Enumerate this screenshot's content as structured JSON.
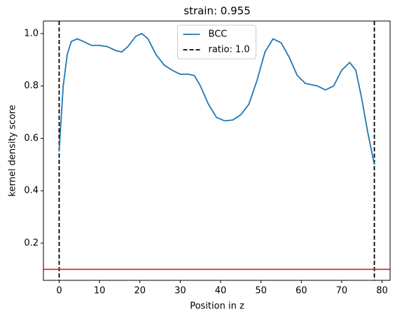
{
  "chart_data": {
    "type": "line",
    "title": "strain: 0.955",
    "x_label": "Position in z",
    "y_label": "kernel density score",
    "x": [
      0,
      1,
      2,
      3,
      4.5,
      6,
      8,
      10,
      12,
      14,
      15.5,
      17,
      19,
      20.5,
      22,
      24,
      26,
      28,
      30,
      32,
      33.5,
      35,
      37,
      39,
      41,
      43,
      45,
      47,
      49,
      51,
      53,
      55,
      57,
      59,
      61,
      64,
      66,
      68,
      70,
      72,
      73.5,
      75,
      76.5,
      78.1
    ],
    "series": [
      {
        "name": "BCC",
        "color": "#1f77b4",
        "values": [
          0.55,
          0.8,
          0.92,
          0.97,
          0.98,
          0.97,
          0.955,
          0.955,
          0.95,
          0.935,
          0.93,
          0.95,
          0.99,
          1.0,
          0.98,
          0.92,
          0.88,
          0.86,
          0.845,
          0.845,
          0.84,
          0.8,
          0.73,
          0.68,
          0.667,
          0.67,
          0.69,
          0.73,
          0.82,
          0.93,
          0.98,
          0.965,
          0.91,
          0.84,
          0.81,
          0.8,
          0.785,
          0.8,
          0.86,
          0.89,
          0.86,
          0.75,
          0.62,
          0.5
        ]
      }
    ],
    "vlines": {
      "name": "ratio: 1.0",
      "color": "#000000",
      "x": [
        0,
        78.1
      ]
    },
    "hline": {
      "y": 0.1,
      "color": "#e31a1c"
    },
    "xlim": [
      -3.9,
      82.0
    ],
    "ylim": [
      0.058,
      1.048
    ],
    "xticks": [
      0,
      10,
      20,
      30,
      40,
      50,
      60,
      70,
      80
    ],
    "yticks": [
      0.2,
      0.4,
      0.6,
      0.8,
      {
        "value": 1,
        "label": "1.0"
      }
    ],
    "legend": "upper center"
  }
}
